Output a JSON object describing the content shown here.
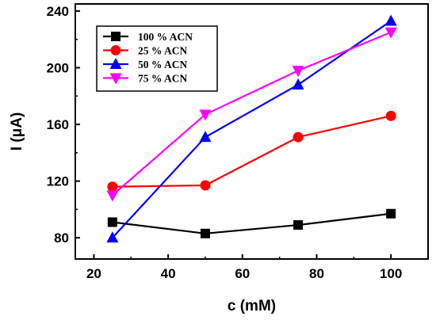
{
  "chart_data": {
    "type": "line",
    "x": [
      25,
      50,
      75,
      100
    ],
    "xlabel": "c (mM)",
    "ylabel": "I (μA)",
    "xlim": [
      15,
      110
    ],
    "ylim": [
      65,
      245
    ],
    "xticks": [
      20,
      40,
      60,
      80,
      100
    ],
    "yticks": [
      80,
      120,
      160,
      200,
      240
    ],
    "xtick_labels": [
      "20",
      "40",
      "60",
      "80",
      "100"
    ],
    "ytick_labels": [
      "80",
      "120",
      "160",
      "200",
      "240"
    ],
    "grid": false,
    "legend_position": "top-left",
    "series": [
      {
        "name": "100 % ACN",
        "color": "#000000",
        "marker": "square",
        "values": [
          91,
          83,
          89,
          97
        ]
      },
      {
        "name": "25 % ACN",
        "color": "#ff0000",
        "marker": "circle",
        "values": [
          116,
          117,
          151,
          166
        ]
      },
      {
        "name": "50 % ACN",
        "color": "#0000ff",
        "marker": "triangle-up",
        "values": [
          80,
          151,
          188,
          233
        ]
      },
      {
        "name": "75 % ACN",
        "color": "#ff00ff",
        "marker": "triangle-down",
        "values": [
          110,
          167,
          198,
          225
        ]
      }
    ]
  }
}
